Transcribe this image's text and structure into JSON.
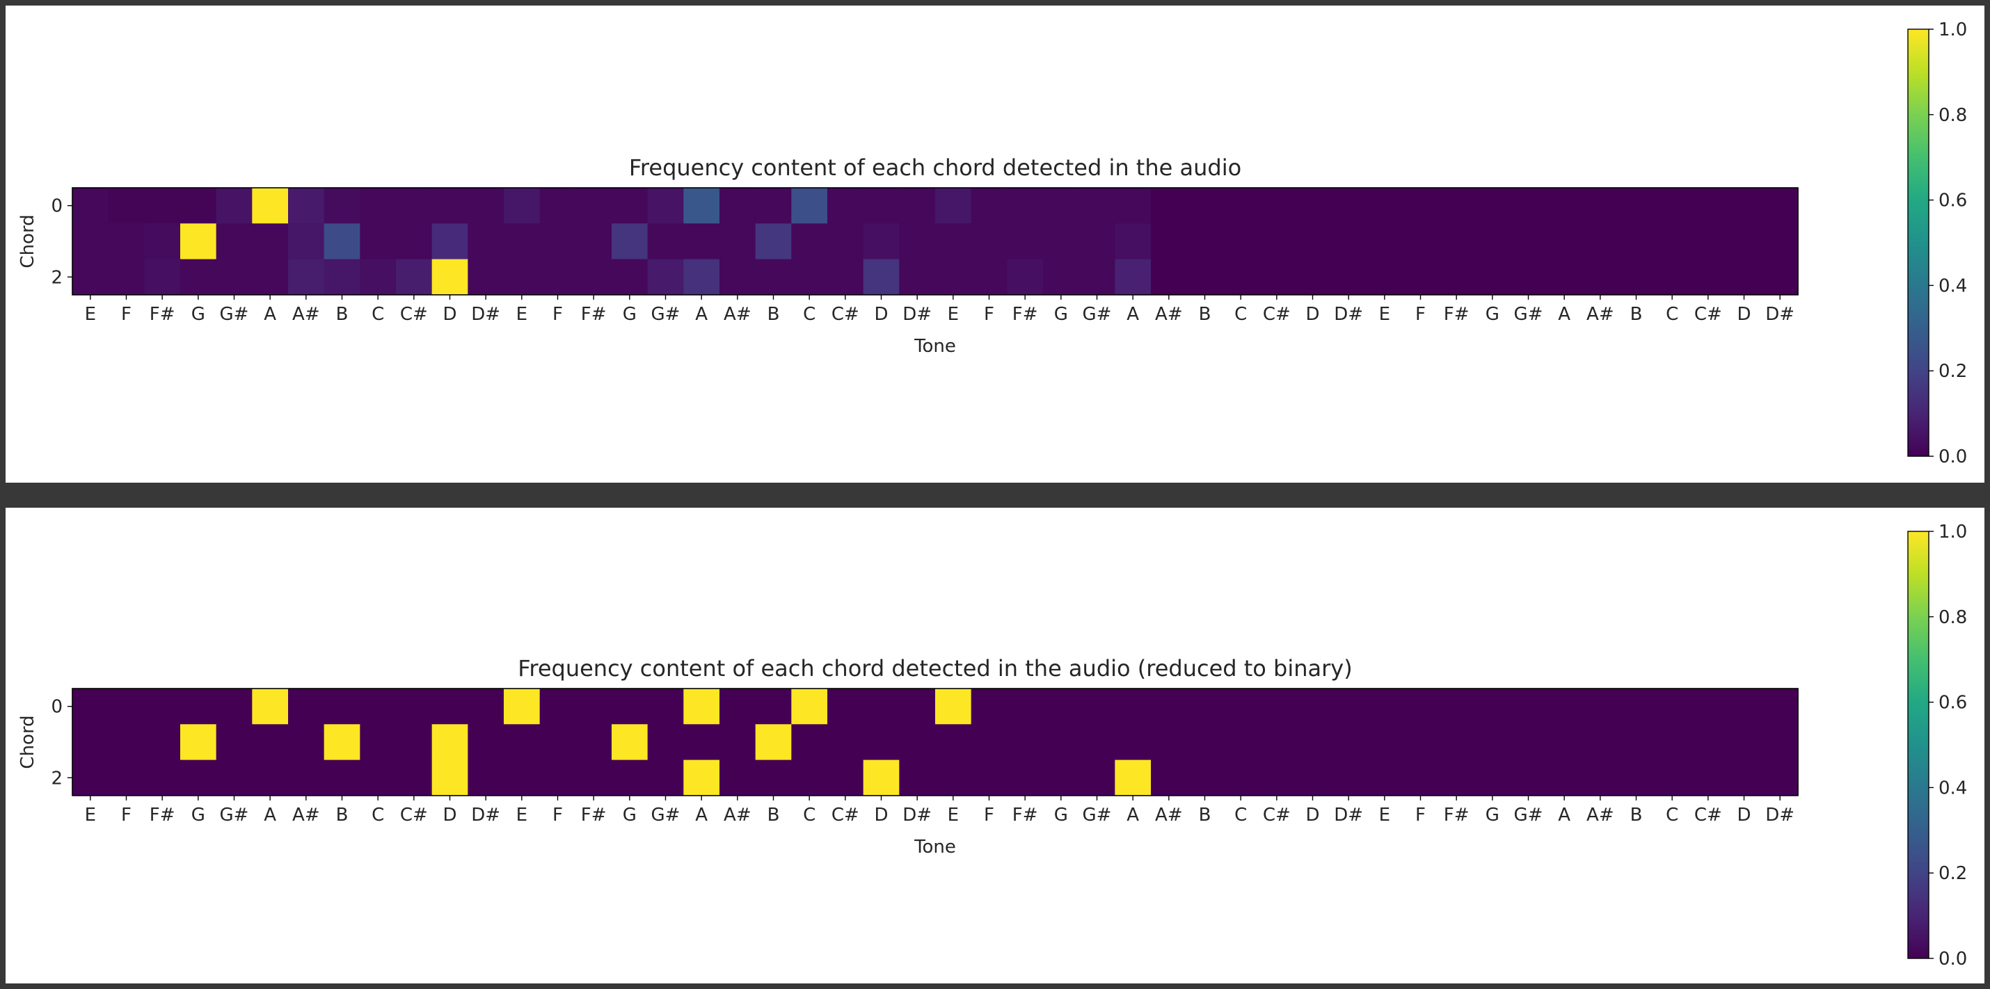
{
  "chart_data": [
    {
      "type": "heatmap",
      "title": "Frequency content of each chord detected in the audio",
      "xlabel": "Tone",
      "ylabel": "Chord",
      "x_tick_labels": [
        "E",
        "F",
        "F#",
        "G",
        "G#",
        "A",
        "A#",
        "B",
        "C",
        "C#",
        "D",
        "D#",
        "E",
        "F",
        "F#",
        "G",
        "G#",
        "A",
        "A#",
        "B",
        "C",
        "C#",
        "D",
        "D#",
        "E",
        "F",
        "F#",
        "G",
        "G#",
        "A",
        "A#",
        "B",
        "C",
        "C#",
        "D",
        "D#",
        "E",
        "F",
        "F#",
        "G",
        "G#",
        "A",
        "A#",
        "B",
        "C",
        "C#",
        "D",
        "D#"
      ],
      "y_tick_labels": [
        "0",
        "2"
      ],
      "rows": [
        "0",
        "1",
        "2"
      ],
      "colormap": "viridis",
      "colorbar": {
        "min": 0.0,
        "max": 1.0,
        "ticks": [
          "0.0",
          "0.2",
          "0.4",
          "0.6",
          "0.8",
          "1.0"
        ]
      },
      "values": [
        [
          0.02,
          0.01,
          0.01,
          0.01,
          0.05,
          1.0,
          0.07,
          0.03,
          0.02,
          0.02,
          0.02,
          0.02,
          0.06,
          0.02,
          0.02,
          0.02,
          0.05,
          0.27,
          0.02,
          0.02,
          0.24,
          0.02,
          0.02,
          0.02,
          0.06,
          0.02,
          0.02,
          0.02,
          0.02,
          0.02,
          0.0,
          0.0,
          0.0,
          0.0,
          0.0,
          0.0,
          0.0,
          0.0,
          0.0,
          0.0,
          0.0,
          0.0,
          0.0,
          0.0,
          0.0,
          0.0,
          0.0,
          0.0
        ],
        [
          0.02,
          0.02,
          0.03,
          1.0,
          0.02,
          0.02,
          0.06,
          0.23,
          0.02,
          0.02,
          0.12,
          0.02,
          0.02,
          0.02,
          0.02,
          0.15,
          0.02,
          0.02,
          0.02,
          0.16,
          0.02,
          0.02,
          0.04,
          0.02,
          0.02,
          0.02,
          0.02,
          0.02,
          0.02,
          0.04,
          0.0,
          0.0,
          0.0,
          0.0,
          0.0,
          0.0,
          0.0,
          0.0,
          0.0,
          0.0,
          0.0,
          0.0,
          0.0,
          0.0,
          0.0,
          0.0,
          0.0,
          0.0
        ],
        [
          0.02,
          0.02,
          0.04,
          0.02,
          0.02,
          0.02,
          0.08,
          0.06,
          0.04,
          0.08,
          1.0,
          0.02,
          0.02,
          0.02,
          0.02,
          0.02,
          0.07,
          0.14,
          0.02,
          0.02,
          0.02,
          0.02,
          0.15,
          0.02,
          0.02,
          0.02,
          0.04,
          0.02,
          0.02,
          0.09,
          0.0,
          0.0,
          0.0,
          0.0,
          0.0,
          0.0,
          0.0,
          0.0,
          0.0,
          0.0,
          0.0,
          0.0,
          0.0,
          0.0,
          0.0,
          0.0,
          0.0,
          0.0
        ]
      ]
    },
    {
      "type": "heatmap",
      "title": "Frequency content of each chord detected in the audio (reduced to binary)",
      "xlabel": "Tone",
      "ylabel": "Chord",
      "x_tick_labels": [
        "E",
        "F",
        "F#",
        "G",
        "G#",
        "A",
        "A#",
        "B",
        "C",
        "C#",
        "D",
        "D#",
        "E",
        "F",
        "F#",
        "G",
        "G#",
        "A",
        "A#",
        "B",
        "C",
        "C#",
        "D",
        "D#",
        "E",
        "F",
        "F#",
        "G",
        "G#",
        "A",
        "A#",
        "B",
        "C",
        "C#",
        "D",
        "D#",
        "E",
        "F",
        "F#",
        "G",
        "G#",
        "A",
        "A#",
        "B",
        "C",
        "C#",
        "D",
        "D#"
      ],
      "y_tick_labels": [
        "0",
        "2"
      ],
      "rows": [
        "0",
        "1",
        "2"
      ],
      "colormap": "viridis",
      "colorbar": {
        "min": 0.0,
        "max": 1.0,
        "ticks": [
          "0.0",
          "0.2",
          "0.4",
          "0.6",
          "0.8",
          "1.0"
        ]
      },
      "values": [
        [
          0,
          0,
          0,
          0,
          0,
          1,
          0,
          0,
          0,
          0,
          0,
          0,
          1,
          0,
          0,
          0,
          0,
          1,
          0,
          0,
          1,
          0,
          0,
          0,
          1,
          0,
          0,
          0,
          0,
          0,
          0,
          0,
          0,
          0,
          0,
          0,
          0,
          0,
          0,
          0,
          0,
          0,
          0,
          0,
          0,
          0,
          0,
          0
        ],
        [
          0,
          0,
          0,
          1,
          0,
          0,
          0,
          1,
          0,
          0,
          1,
          0,
          0,
          0,
          0,
          1,
          0,
          0,
          0,
          1,
          0,
          0,
          0,
          0,
          0,
          0,
          0,
          0,
          0,
          0,
          0,
          0,
          0,
          0,
          0,
          0,
          0,
          0,
          0,
          0,
          0,
          0,
          0,
          0,
          0,
          0,
          0,
          0
        ],
        [
          0,
          0,
          0,
          0,
          0,
          0,
          0,
          0,
          0,
          0,
          1,
          0,
          0,
          0,
          0,
          0,
          0,
          1,
          0,
          0,
          0,
          0,
          1,
          0,
          0,
          0,
          0,
          0,
          0,
          1,
          0,
          0,
          0,
          0,
          0,
          0,
          0,
          0,
          0,
          0,
          0,
          0,
          0,
          0,
          0,
          0,
          0,
          0
        ]
      ]
    }
  ]
}
